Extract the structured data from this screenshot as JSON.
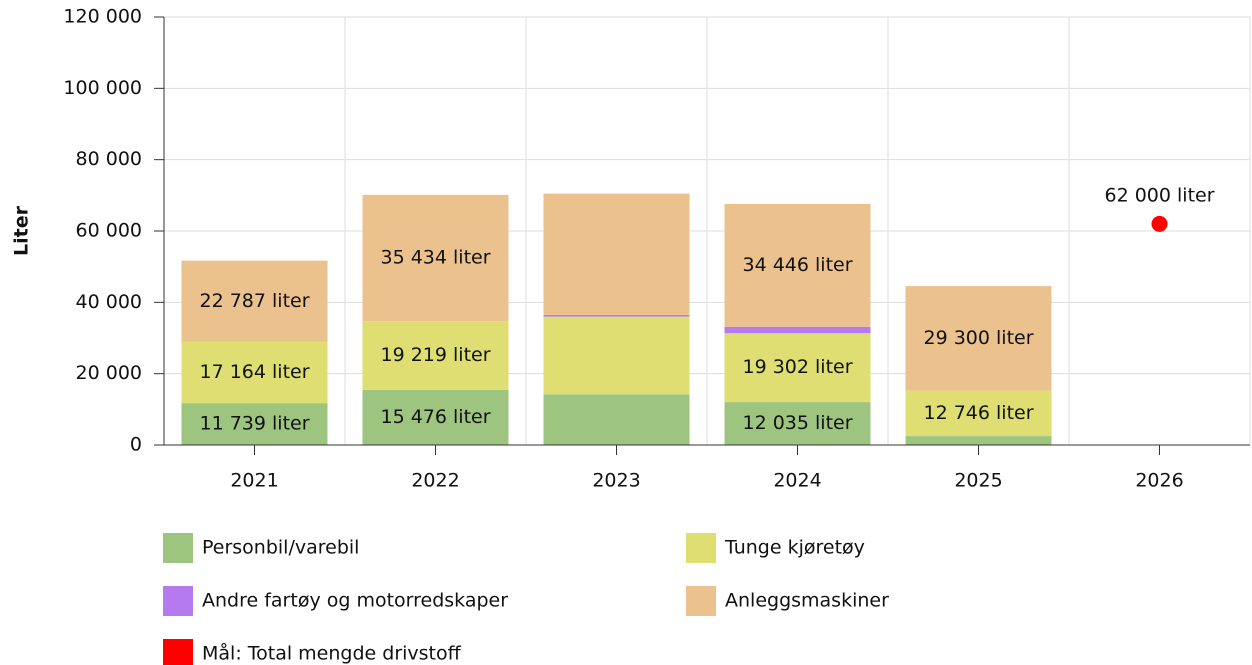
{
  "chart_data": {
    "type": "bar",
    "stacked": true,
    "y_label": "Liter",
    "categories": [
      "2021",
      "2022",
      "2023",
      "2024",
      "2025",
      "2026"
    ],
    "series": [
      {
        "name": "Personbil/varebil",
        "color": "#9dc57f",
        "values": [
          11739,
          15476,
          14200,
          12035,
          2500,
          null
        ],
        "value_labels": [
          "11 739 liter",
          "15 476 liter",
          null,
          "12 035 liter",
          null,
          null
        ]
      },
      {
        "name": "Tunge kjøretøy",
        "color": "#dede72",
        "values": [
          17164,
          19219,
          21800,
          19302,
          12746,
          null
        ],
        "value_labels": [
          "17 164 liter",
          "19 219 liter",
          null,
          "19 302 liter",
          "12 746 liter",
          null
        ]
      },
      {
        "name": "Andre fartøy og motorredskaper",
        "color": "#b57bee",
        "values": [
          0,
          0,
          500,
          1800,
          0,
          null
        ]
      },
      {
        "name": "Anleggsmaskiner",
        "color": "#ebc28d",
        "values": [
          22787,
          35434,
          34000,
          34446,
          29300,
          null
        ],
        "value_labels": [
          "22 787 liter",
          "35 434 liter",
          null,
          "34 446 liter",
          "29 300 liter",
          null
        ]
      },
      {
        "name": "Mål: Total mengde drivstoff",
        "color": "#ff0000",
        "type": "scatter",
        "values": [
          null,
          null,
          null,
          null,
          null,
          62000
        ],
        "value_labels": [
          null,
          null,
          null,
          null,
          null,
          "62 000 liter"
        ]
      }
    ],
    "ylim": [
      0,
      120000
    ],
    "yticks": [
      0,
      {
        "value": 20000,
        "label": "20 000"
      },
      {
        "value": 40000,
        "label": "40 000"
      },
      {
        "value": 60000,
        "label": "60 000"
      },
      {
        "value": 80000,
        "label": "80 000"
      },
      {
        "value": 100000,
        "label": "100 000"
      },
      {
        "value": 120000,
        "label": "120 000"
      }
    ],
    "grid": true
  }
}
